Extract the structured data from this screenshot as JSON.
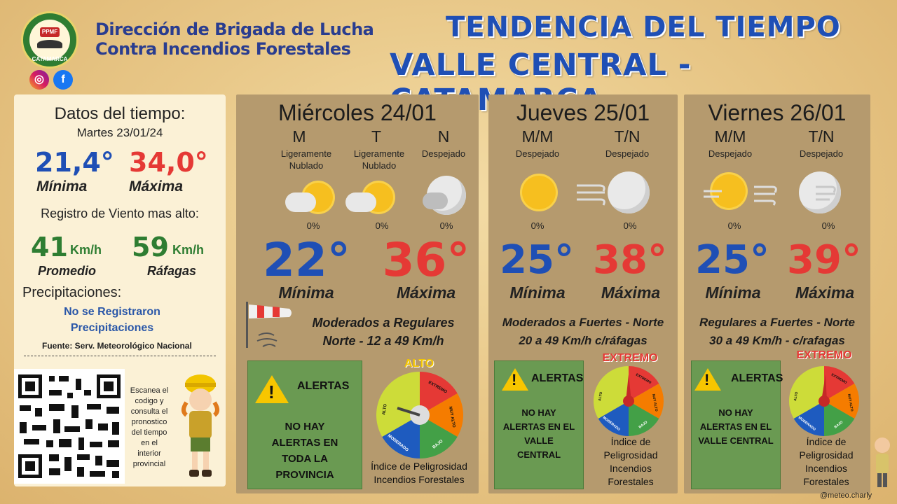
{
  "header": {
    "org_line1": "Dirección de Brigada de Lucha",
    "org_line2": "Contra Incendios Forestales",
    "logo_badge": "PPMF",
    "logo_text": "CATAMARCA",
    "title_line1": "TENDENCIA DEL TIEMPO",
    "title_line2": "VALLE CENTRAL - CATAMARCA",
    "social_icons": [
      "instagram-icon",
      "facebook-icon"
    ]
  },
  "left": {
    "title": "Datos del tiempo:",
    "date": "Martes 23/01/24",
    "min_value": "21,4°",
    "min_label": "Mínima",
    "max_value": "34,0°",
    "max_label": "Máxima",
    "wind_title": "Registro de Viento mas alto:",
    "wind_avg": "41",
    "wind_avg_unit": "Km/h",
    "wind_avg_label": "Promedio",
    "wind_gust": "59",
    "wind_gust_unit": "Km/h",
    "wind_gust_label": "Ráfagas",
    "precip_title": "Precipitaciones:",
    "precip_line1": "No se Registraron",
    "precip_line2": "Precipitaciones",
    "source": "Fuente: Serv. Meteorológico Nacional",
    "qr_caption": [
      "Escanea el",
      "codigo y",
      "consulta el",
      "pronostico",
      "del tiempo",
      "en el",
      "interior",
      "provincial"
    ]
  },
  "days": [
    {
      "title": "Miércoles 24/01",
      "periods": [
        {
          "label": "M",
          "desc1": "Ligeramente",
          "desc2": "Nublado",
          "pct": "0%",
          "icon": "partly-cloudy-sun-icon"
        },
        {
          "label": "T",
          "desc1": "Ligeramente",
          "desc2": "Nublado",
          "pct": "0%",
          "icon": "partly-cloudy-sun-icon"
        },
        {
          "label": "N",
          "desc1": "Despejado",
          "desc2": "",
          "pct": "0%",
          "icon": "cloudy-moon-icon"
        }
      ],
      "min": "22°",
      "min_label": "Mínima",
      "max": "36°",
      "max_label": "Máxima",
      "wind1": "Moderados a Regulares",
      "wind2": "Norte - 12 a 49 Km/h",
      "alert_title": "ALERTAS",
      "alert_lines": [
        "NO HAY",
        "ALERTAS EN",
        "TODA LA",
        "PROVINCIA"
      ],
      "level": "ALTO",
      "index1": "Índice de Peligrosidad",
      "index2": "Incendios Forestales"
    },
    {
      "title": "Jueves 25/01",
      "periods": [
        {
          "label": "M/M",
          "desc1": "Despejado",
          "desc2": "",
          "pct": "0%",
          "icon": "sun-icon"
        },
        {
          "label": "T/N",
          "desc1": "Despejado",
          "desc2": "",
          "pct": "0%",
          "icon": "windy-moon-icon"
        }
      ],
      "min": "25°",
      "min_label": "Mínima",
      "max": "38°",
      "max_label": "Máxima",
      "wind1": "Moderados a Fuertes - Norte",
      "wind2": "20 a 49 Km/h c/ráfagas",
      "alert_title": "ALERTAS",
      "alert_lines": [
        "NO HAY",
        "ALERTAS EN EL",
        "VALLE",
        "CENTRAL"
      ],
      "level": "EXTREMO",
      "index_lines": [
        "Índice de",
        "Peligrosidad",
        "Incendios",
        "Forestales"
      ]
    },
    {
      "title": "Viernes 26/01",
      "periods": [
        {
          "label": "M/M",
          "desc1": "Despejado",
          "desc2": "",
          "pct": "0%",
          "icon": "windy-sun-icon"
        },
        {
          "label": "T/N",
          "desc1": "Despejado",
          "desc2": "",
          "pct": "0%",
          "icon": "windy-moon-icon"
        }
      ],
      "min": "25°",
      "min_label": "Mínima",
      "max": "39°",
      "max_label": "Máxima",
      "wind1": "Regulares a Fuertes - Norte",
      "wind2": "30 a 49 Km/h - c/rafagas",
      "alert_title": "ALERTAS",
      "alert_lines": [
        "NO HAY",
        "ALERTAS EN EL",
        "VALLE CENTRAL"
      ],
      "level": "EXTREMO",
      "index_lines": [
        "Índice de",
        "Peligrosidad",
        "Incendios",
        "Forestales"
      ]
    }
  ],
  "gauge_labels": [
    "EXTREMO",
    "MUY ALTO",
    "ALTO",
    "MODERADO",
    "BAJO"
  ],
  "colors": {
    "title_blue": "#1f4fb5",
    "temp_red": "#e53935",
    "wind_green": "#2e7d32",
    "level_alto": "#f2c500",
    "level_extremo": "#e53935"
  },
  "footer": {
    "credit": "@meteo.charly"
  }
}
